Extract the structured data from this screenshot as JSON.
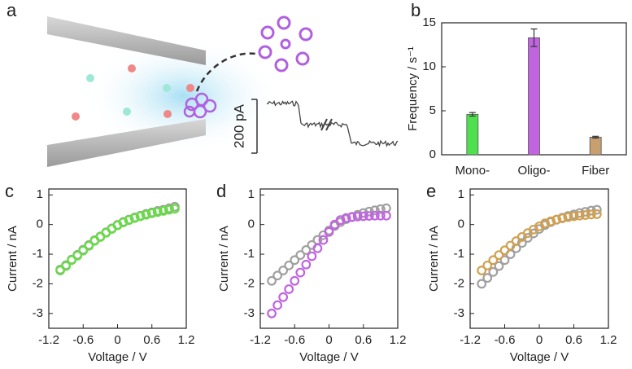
{
  "schematic": {
    "panel_label": "a",
    "scale_label": "200 pA"
  },
  "chart_data": [
    {
      "type": "bar",
      "panel_label": "b",
      "y_label": "Frequency / s⁻¹",
      "categories": [
        "Mono-",
        "Oligo-",
        "Fiber"
      ],
      "values": [
        4.6,
        13.3,
        2.0
      ],
      "errors": [
        0.2,
        1.0,
        0.1
      ],
      "colors": [
        "#4fe04f",
        "#c064e0",
        "#c8a070"
      ],
      "ylim": [
        0,
        15
      ],
      "yticks": [
        0,
        5,
        10,
        15
      ]
    },
    {
      "type": "scatter",
      "panel_label": "c",
      "x_label": "Voltage / V",
      "y_label": "Current / nA",
      "x": [
        -1,
        -0.9,
        -0.8,
        -0.7,
        -0.6,
        -0.5,
        -0.4,
        -0.3,
        -0.2,
        -0.1,
        0,
        0.1,
        0.2,
        0.3,
        0.4,
        0.5,
        0.6,
        0.7,
        0.8,
        0.9,
        1
      ],
      "series": [
        {
          "color": "#a0a0a0",
          "values": [
            -1.52,
            -1.37,
            -1.18,
            -1.02,
            -0.85,
            -0.69,
            -0.53,
            -0.4,
            -0.26,
            -0.13,
            -0.01,
            0.09,
            0.17,
            0.24,
            0.3,
            0.36,
            0.41,
            0.46,
            0.5,
            0.55,
            0.6
          ]
        },
        {
          "color": "#66dd44",
          "values": [
            -1.55,
            -1.4,
            -1.2,
            -1.05,
            -0.88,
            -0.72,
            -0.55,
            -0.42,
            -0.28,
            -0.15,
            -0.03,
            0.07,
            0.15,
            0.22,
            0.28,
            0.33,
            0.38,
            0.42,
            0.46,
            0.5,
            0.53
          ]
        }
      ],
      "xlim": [
        -1.2,
        1.2
      ],
      "xticks": [
        -1.2,
        -0.6,
        0,
        0.6,
        1.2
      ],
      "ylim": [
        -3.5,
        1.2
      ],
      "yticks": [
        1,
        0,
        -1,
        -2,
        -3
      ]
    },
    {
      "type": "scatter",
      "panel_label": "d",
      "x_label": "Voltage / V",
      "y_label": "Current / nA",
      "x": [
        -1,
        -0.9,
        -0.8,
        -0.7,
        -0.6,
        -0.5,
        -0.4,
        -0.3,
        -0.2,
        -0.1,
        0,
        0.1,
        0.2,
        0.3,
        0.4,
        0.5,
        0.6,
        0.7,
        0.8,
        0.9,
        1
      ],
      "series": [
        {
          "color": "#a0a0a0",
          "values": [
            -1.9,
            -1.72,
            -1.55,
            -1.38,
            -1.2,
            -1.03,
            -0.86,
            -0.69,
            -0.52,
            -0.36,
            -0.2,
            -0.05,
            0.08,
            0.18,
            0.26,
            0.33,
            0.39,
            0.44,
            0.48,
            0.52,
            0.55
          ]
        },
        {
          "color": "#c064e0",
          "values": [
            -3.0,
            -2.72,
            -2.45,
            -2.18,
            -1.9,
            -1.62,
            -1.35,
            -1.07,
            -0.8,
            -0.52,
            -0.25,
            0.0,
            0.15,
            0.22,
            0.25,
            0.27,
            0.28,
            0.29,
            0.3,
            0.3,
            0.3
          ]
        }
      ],
      "xlim": [
        -1.2,
        1.2
      ],
      "xticks": [
        -1.2,
        -0.6,
        0,
        0.6,
        1.2
      ],
      "ylim": [
        -3.5,
        1.2
      ],
      "yticks": [
        1,
        0,
        -1,
        -2,
        -3
      ]
    },
    {
      "type": "scatter",
      "panel_label": "e",
      "x_label": "Voltage / V",
      "y_label": "Current / nA",
      "x": [
        -1,
        -0.9,
        -0.8,
        -0.7,
        -0.6,
        -0.5,
        -0.4,
        -0.3,
        -0.2,
        -0.1,
        0,
        0.1,
        0.2,
        0.3,
        0.4,
        0.5,
        0.6,
        0.7,
        0.8,
        0.9,
        1
      ],
      "series": [
        {
          "color": "#a0a0a0",
          "values": [
            -2.0,
            -1.8,
            -1.6,
            -1.4,
            -1.2,
            -1.0,
            -0.8,
            -0.62,
            -0.45,
            -0.3,
            -0.15,
            -0.02,
            0.08,
            0.16,
            0.23,
            0.29,
            0.34,
            0.39,
            0.43,
            0.47,
            0.5
          ]
        },
        {
          "color": "#d0a050",
          "values": [
            -1.55,
            -1.38,
            -1.2,
            -1.03,
            -0.87,
            -0.71,
            -0.56,
            -0.42,
            -0.29,
            -0.17,
            -0.06,
            0.04,
            0.11,
            0.17,
            0.21,
            0.25,
            0.28,
            0.3,
            0.32,
            0.34,
            0.35
          ]
        }
      ],
      "xlim": [
        -1.2,
        1.2
      ],
      "xticks": [
        -1.2,
        -0.6,
        0,
        0.6,
        1.2
      ],
      "ylim": [
        -3.5,
        1.2
      ],
      "yticks": [
        1,
        0,
        -1,
        -2,
        -3
      ]
    }
  ]
}
